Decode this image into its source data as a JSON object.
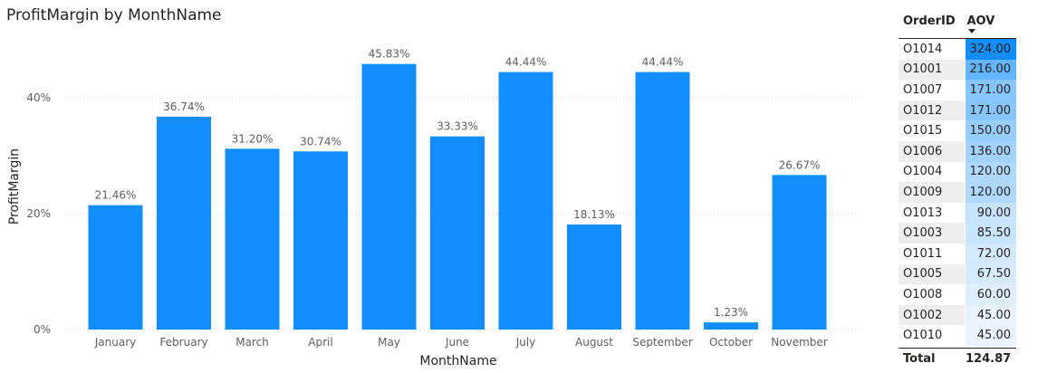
{
  "chart": {
    "title": "ProfitMargin by MonthName",
    "accent_color": "#118DFF"
  },
  "chart_data": {
    "type": "bar",
    "title": "ProfitMargin by MonthName",
    "xlabel": "MonthName",
    "ylabel": "ProfitMargin",
    "categories": [
      "January",
      "February",
      "March",
      "April",
      "May",
      "June",
      "July",
      "August",
      "September",
      "October",
      "November"
    ],
    "values": [
      21.46,
      36.74,
      31.2,
      30.74,
      45.83,
      33.33,
      44.44,
      18.13,
      44.44,
      1.23,
      26.67
    ],
    "data_labels": [
      "21.46%",
      "36.74%",
      "31.20%",
      "30.74%",
      "45.83%",
      "33.33%",
      "44.44%",
      "18.13%",
      "44.44%",
      "1.23%",
      "26.67%"
    ],
    "yticks": [
      0,
      20,
      40
    ],
    "ytick_labels": [
      "0%",
      "20%",
      "40%"
    ],
    "ylim": [
      0,
      48
    ],
    "grid": true
  },
  "table": {
    "headers": {
      "order_id": "OrderID",
      "aov": "AOV"
    },
    "sort": "descending by AOV",
    "rows": [
      {
        "order_id": "O1014",
        "aov": "324.00",
        "value": 324.0
      },
      {
        "order_id": "O1001",
        "aov": "216.00",
        "value": 216.0
      },
      {
        "order_id": "O1007",
        "aov": "171.00",
        "value": 171.0
      },
      {
        "order_id": "O1012",
        "aov": "171.00",
        "value": 171.0
      },
      {
        "order_id": "O1015",
        "aov": "150.00",
        "value": 150.0
      },
      {
        "order_id": "O1006",
        "aov": "136.00",
        "value": 136.0
      },
      {
        "order_id": "O1004",
        "aov": "120.00",
        "value": 120.0
      },
      {
        "order_id": "O1009",
        "aov": "120.00",
        "value": 120.0
      },
      {
        "order_id": "O1013",
        "aov": "90.00",
        "value": 90.0
      },
      {
        "order_id": "O1003",
        "aov": "85.50",
        "value": 85.5
      },
      {
        "order_id": "O1011",
        "aov": "72.00",
        "value": 72.0
      },
      {
        "order_id": "O1005",
        "aov": "67.50",
        "value": 67.5
      },
      {
        "order_id": "O1008",
        "aov": "60.00",
        "value": 60.0
      },
      {
        "order_id": "O1002",
        "aov": "45.00",
        "value": 45.0
      },
      {
        "order_id": "O1010",
        "aov": "45.00",
        "value": 45.0
      }
    ],
    "total": {
      "label": "Total",
      "aov": "124.87"
    },
    "bar_color_max": "#118DFF",
    "bar_color_min": "#E8F3FF"
  }
}
